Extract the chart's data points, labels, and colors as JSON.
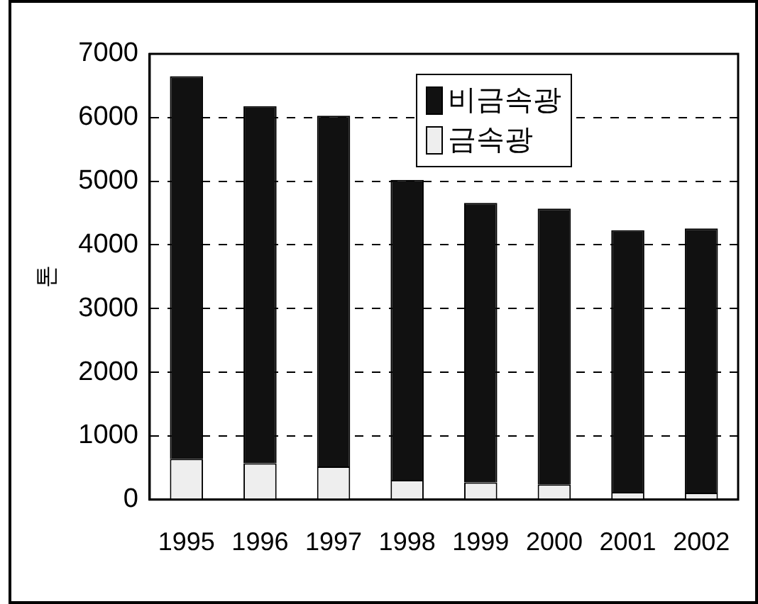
{
  "chart_data": {
    "type": "bar",
    "ylabel": "톤",
    "categories": [
      "1995",
      "1996",
      "1997",
      "1998",
      "1999",
      "2000",
      "2001",
      "2002"
    ],
    "series": [
      {
        "name": "금속광",
        "color": "#eeeeee",
        "values": [
          640,
          570,
          520,
          310,
          270,
          240,
          120,
          110
        ]
      },
      {
        "name": "비금속광",
        "color": "#111111",
        "values": [
          6010,
          5610,
          5510,
          4710,
          4390,
          4330,
          4110,
          4150
        ]
      }
    ],
    "stacked": true,
    "ylim": [
      0,
      7000
    ],
    "yticks": [
      0,
      1000,
      2000,
      3000,
      4000,
      5000,
      6000,
      7000
    ],
    "grid": "y",
    "legend": "top",
    "line_style": "dashed"
  }
}
